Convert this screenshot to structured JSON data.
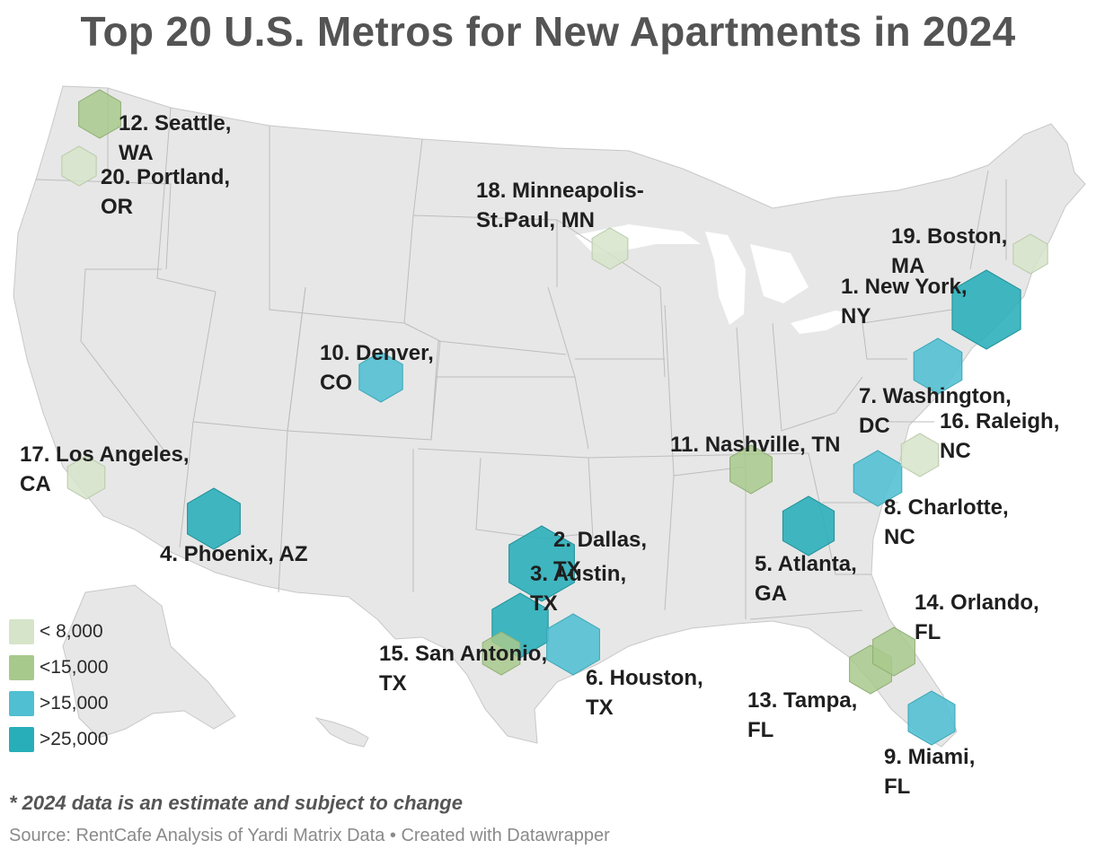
{
  "title": "Top 20 U.S. Metros for New Apartments in 2024",
  "legend": {
    "items": [
      {
        "label": "< 8,000",
        "color": "#d6e4c9"
      },
      {
        "label": "<15,000",
        "color": "#a8c98c"
      },
      {
        "label": ">15,000",
        "color": "#50bfd1"
      },
      {
        "label": ">25,000",
        "color": "#27aeb9"
      }
    ]
  },
  "metros": [
    {
      "rank": 1,
      "lines": [
        "1. New York,",
        "NY"
      ],
      "tier": 3
    },
    {
      "rank": 2,
      "lines": [
        "2. Dallas,",
        "TX"
      ],
      "tier": 3
    },
    {
      "rank": 3,
      "lines": [
        "3. Austin,",
        "TX"
      ],
      "tier": 3
    },
    {
      "rank": 4,
      "lines": [
        "4. Phoenix, AZ"
      ],
      "tier": 3
    },
    {
      "rank": 5,
      "lines": [
        "5. Atlanta,",
        "GA"
      ],
      "tier": 3
    },
    {
      "rank": 6,
      "lines": [
        "6. Houston,",
        "TX"
      ],
      "tier": 2
    },
    {
      "rank": 7,
      "lines": [
        "7. Washington,",
        "DC"
      ],
      "tier": 2
    },
    {
      "rank": 8,
      "lines": [
        "8. Charlotte,",
        "NC"
      ],
      "tier": 2
    },
    {
      "rank": 9,
      "lines": [
        "9. Miami,",
        "FL"
      ],
      "tier": 2
    },
    {
      "rank": 10,
      "lines": [
        "10. Denver,",
        "CO"
      ],
      "tier": 2
    },
    {
      "rank": 11,
      "lines": [
        "11. Nashville, TN"
      ],
      "tier": 1
    },
    {
      "rank": 12,
      "lines": [
        "12. Seattle,",
        "WA"
      ],
      "tier": 1
    },
    {
      "rank": 13,
      "lines": [
        "13. Tampa,",
        "FL"
      ],
      "tier": 1
    },
    {
      "rank": 14,
      "lines": [
        "14. Orlando,",
        "FL"
      ],
      "tier": 1
    },
    {
      "rank": 15,
      "lines": [
        "15. San Antonio,",
        "TX"
      ],
      "tier": 1
    },
    {
      "rank": 16,
      "lines": [
        "16. Raleigh,",
        "NC"
      ],
      "tier": 0
    },
    {
      "rank": 17,
      "lines": [
        "17. Los Angeles,",
        "CA"
      ],
      "tier": 0
    },
    {
      "rank": 18,
      "lines": [
        "18. Minneapolis-",
        "St.Paul, MN"
      ],
      "tier": 0
    },
    {
      "rank": 19,
      "lines": [
        "19. Boston,",
        "MA"
      ],
      "tier": 0
    },
    {
      "rank": 20,
      "lines": [
        "20. Portland,",
        "OR"
      ],
      "tier": 0
    }
  ],
  "footnote": "* 2024 data is an estimate and subject to change",
  "source": "Source: RentCafe Analysis of Yardi Matrix Data • Created with Datawrapper"
}
